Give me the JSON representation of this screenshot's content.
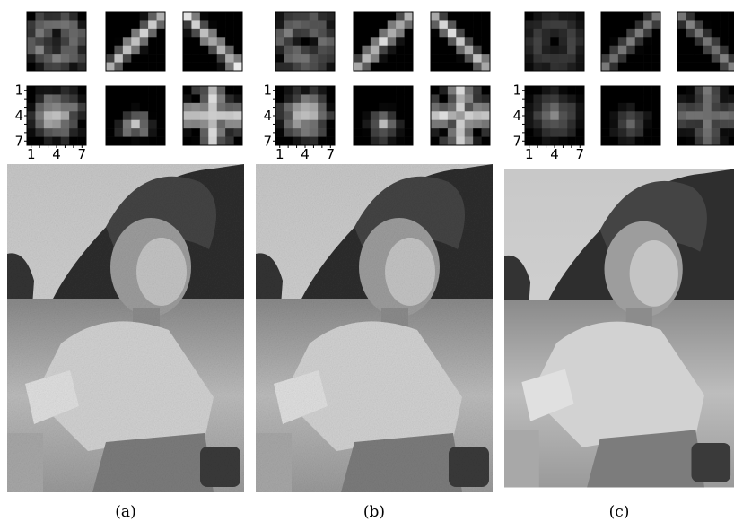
{
  "panels": [
    {
      "caption": "(a)",
      "y_ticks": [
        "1",
        "4",
        "7"
      ],
      "x_ticks": [
        "1",
        "4",
        "7"
      ]
    },
    {
      "caption": "(b)",
      "y_ticks": [
        "1",
        "4",
        "7"
      ],
      "x_ticks": [
        "1",
        "4",
        "7"
      ]
    },
    {
      "caption": "(c)",
      "y_ticks": [
        "1",
        "4",
        "7"
      ],
      "x_ticks": [
        "1",
        "4",
        "7"
      ]
    }
  ]
}
